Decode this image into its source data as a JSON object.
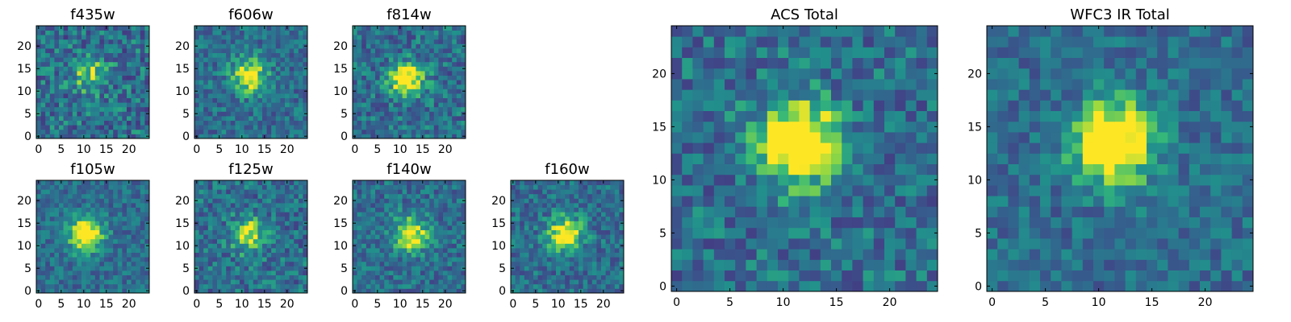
{
  "chart_data": [
    {
      "type": "heatmap",
      "title": "f435w",
      "grid_size": 25,
      "xticks": [
        0,
        5,
        10,
        15,
        20
      ],
      "yticks": [
        0,
        5,
        10,
        15,
        20
      ],
      "xlim": [
        0,
        25
      ],
      "ylim": [
        0,
        25
      ],
      "colormap": "viridis",
      "noise_level": 0.5,
      "peak_center": [
        12,
        14
      ],
      "peak_strength": 0.35
    },
    {
      "type": "heatmap",
      "title": "f606w",
      "grid_size": 25,
      "xticks": [
        0,
        5,
        10,
        15,
        20
      ],
      "yticks": [
        0,
        5,
        10,
        15,
        20
      ],
      "xlim": [
        0,
        25
      ],
      "ylim": [
        0,
        25
      ],
      "colormap": "viridis",
      "noise_level": 0.4,
      "peak_center": [
        12,
        14
      ],
      "peak_strength": 0.5
    },
    {
      "type": "heatmap",
      "title": "f814w",
      "grid_size": 25,
      "xticks": [
        0,
        5,
        10,
        15,
        20
      ],
      "yticks": [
        0,
        5,
        10,
        15,
        20
      ],
      "xlim": [
        0,
        25
      ],
      "ylim": [
        0,
        25
      ],
      "colormap": "viridis",
      "noise_level": 0.45,
      "peak_center": [
        12,
        13
      ],
      "peak_strength": 0.55
    },
    {
      "type": "heatmap",
      "title": "f105w",
      "grid_size": 25,
      "xticks": [
        0,
        5,
        10,
        15,
        20
      ],
      "yticks": [
        0,
        5,
        10,
        15,
        20
      ],
      "xlim": [
        0,
        25
      ],
      "ylim": [
        0,
        25
      ],
      "colormap": "viridis",
      "noise_level": 0.35,
      "peak_center": [
        11,
        13
      ],
      "peak_strength": 0.6
    },
    {
      "type": "heatmap",
      "title": "f125w",
      "grid_size": 25,
      "xticks": [
        0,
        5,
        10,
        15,
        20
      ],
      "yticks": [
        0,
        5,
        10,
        15,
        20
      ],
      "xlim": [
        0,
        25
      ],
      "ylim": [
        0,
        25
      ],
      "colormap": "viridis",
      "noise_level": 0.45,
      "peak_center": [
        12,
        13
      ],
      "peak_strength": 0.45
    },
    {
      "type": "heatmap",
      "title": "f140w",
      "grid_size": 25,
      "xticks": [
        0,
        5,
        10,
        15,
        20
      ],
      "yticks": [
        0,
        5,
        10,
        15,
        20
      ],
      "xlim": [
        0,
        25
      ],
      "ylim": [
        0,
        25
      ],
      "colormap": "viridis",
      "noise_level": 0.4,
      "peak_center": [
        13,
        13
      ],
      "peak_strength": 0.5
    },
    {
      "type": "heatmap",
      "title": "f160w",
      "grid_size": 25,
      "xticks": [
        0,
        5,
        10,
        15,
        20
      ],
      "yticks": [
        0,
        5,
        10,
        15,
        20
      ],
      "xlim": [
        0,
        25
      ],
      "ylim": [
        0,
        25
      ],
      "colormap": "viridis",
      "noise_level": 0.4,
      "peak_center": [
        12,
        13
      ],
      "peak_strength": 0.55
    },
    {
      "type": "heatmap",
      "title": "ACS Total",
      "grid_size": 25,
      "xticks": [
        0,
        5,
        10,
        15,
        20
      ],
      "yticks": [
        0,
        5,
        10,
        15,
        20
      ],
      "xlim": [
        0,
        25
      ],
      "ylim": [
        0,
        25
      ],
      "colormap": "viridis",
      "noise_level": 0.45,
      "peak_center": [
        12,
        14
      ],
      "peak_strength": 0.75
    },
    {
      "type": "heatmap",
      "title": "WFC3 IR Total",
      "grid_size": 25,
      "xticks": [
        0,
        5,
        10,
        15,
        20
      ],
      "yticks": [
        0,
        5,
        10,
        15,
        20
      ],
      "xlim": [
        0,
        25
      ],
      "ylim": [
        0,
        25
      ],
      "colormap": "viridis",
      "noise_level": 0.35,
      "peak_center": [
        12,
        14
      ],
      "peak_strength": 0.7
    }
  ]
}
